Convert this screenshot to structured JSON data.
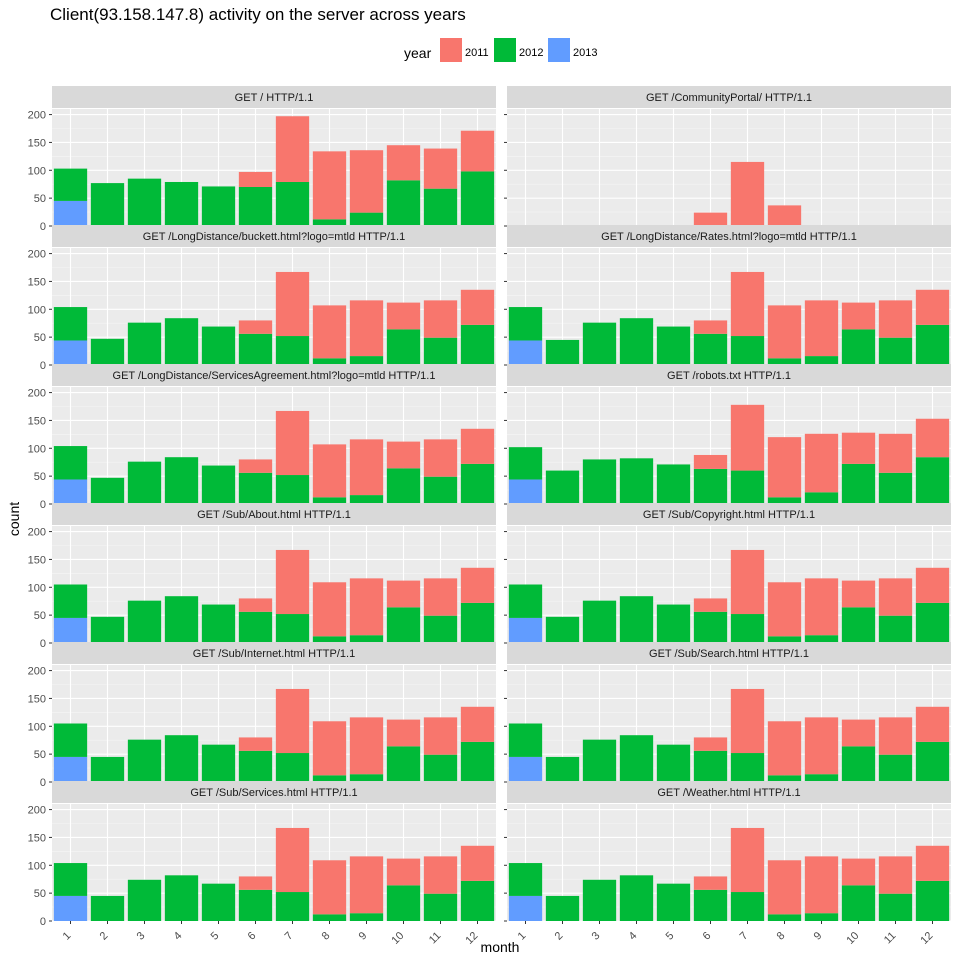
{
  "chart_data": {
    "type": "bar",
    "stacked": true,
    "title": "Client(93.158.147.8) activity on the server across years",
    "xlabel": "month",
    "ylabel": "count",
    "ylim": [
      0,
      210
    ],
    "y_ticks": [
      "0",
      "50",
      "100",
      "150",
      "200"
    ],
    "categories": [
      "1",
      "2",
      "3",
      "4",
      "5",
      "6",
      "7",
      "8",
      "9",
      "10",
      "11",
      "12"
    ],
    "legend": {
      "title": "year",
      "position": "top",
      "entries": [
        {
          "name": "2011",
          "color": "#F8766D"
        },
        {
          "name": "2012",
          "color": "#00BA38"
        },
        {
          "name": "2013",
          "color": "#619CFF"
        }
      ]
    },
    "panels": [
      {
        "name": "GET / HTTP/1.1",
        "series": [
          {
            "name": "2011",
            "values": [
              0,
              0,
              0,
              0,
              0,
              27,
              118,
              122,
              112,
              63,
              72,
              73
            ]
          },
          {
            "name": "2012",
            "values": [
              58,
              77,
              85,
              79,
              71,
              70,
              79,
              12,
              24,
              82,
              67,
              98
            ]
          },
          {
            "name": "2013",
            "values": [
              45,
              0,
              0,
              0,
              0,
              0,
              0,
              0,
              0,
              0,
              0,
              0
            ]
          }
        ]
      },
      {
        "name": "GET /CommunityPortal/ HTTP/1.1",
        "series": [
          {
            "name": "2011",
            "values": [
              0,
              0,
              0,
              0,
              0,
              24,
              115,
              37,
              0,
              0,
              0,
              0
            ]
          },
          {
            "name": "2012",
            "values": [
              0,
              0,
              0,
              0,
              0,
              0,
              0,
              0,
              0,
              0,
              0,
              0
            ]
          },
          {
            "name": "2013",
            "values": [
              0,
              0,
              0,
              0,
              0,
              0,
              0,
              0,
              0,
              0,
              0,
              0
            ]
          }
        ]
      },
      {
        "name": "GET /LongDistance/buckett.html?logo=mtld HTTP/1.1",
        "series": [
          {
            "name": "2011",
            "values": [
              0,
              0,
              0,
              0,
              0,
              24,
              115,
              95,
              100,
              48,
              67,
              63
            ]
          },
          {
            "name": "2012",
            "values": [
              60,
              47,
              76,
              84,
              69,
              56,
              52,
              12,
              16,
              64,
              49,
              72
            ]
          },
          {
            "name": "2013",
            "values": [
              44,
              0,
              0,
              0,
              0,
              0,
              0,
              0,
              0,
              0,
              0,
              0
            ]
          }
        ]
      },
      {
        "name": "GET /LongDistance/Rates.html?logo=mtld HTTP/1.1",
        "series": [
          {
            "name": "2011",
            "values": [
              0,
              0,
              0,
              0,
              0,
              24,
              115,
              95,
              100,
              48,
              67,
              63
            ]
          },
          {
            "name": "2012",
            "values": [
              60,
              45,
              76,
              84,
              69,
              56,
              52,
              12,
              16,
              64,
              49,
              72
            ]
          },
          {
            "name": "2013",
            "values": [
              44,
              0,
              0,
              0,
              0,
              0,
              0,
              0,
              0,
              0,
              0,
              0
            ]
          }
        ]
      },
      {
        "name": "GET /LongDistance/ServicesAgreement.html?logo=mtld HTTP/1.1",
        "series": [
          {
            "name": "2011",
            "values": [
              0,
              0,
              0,
              0,
              0,
              24,
              115,
              95,
              100,
              48,
              67,
              63
            ]
          },
          {
            "name": "2012",
            "values": [
              60,
              47,
              76,
              84,
              69,
              56,
              52,
              12,
              16,
              64,
              49,
              72
            ]
          },
          {
            "name": "2013",
            "values": [
              44,
              0,
              0,
              0,
              0,
              0,
              0,
              0,
              0,
              0,
              0,
              0
            ]
          }
        ]
      },
      {
        "name": "GET /robots.txt HTTP/1.1",
        "series": [
          {
            "name": "2011",
            "values": [
              0,
              0,
              0,
              0,
              0,
              25,
              118,
              108,
              105,
              56,
              70,
              69
            ]
          },
          {
            "name": "2012",
            "values": [
              58,
              60,
              80,
              82,
              71,
              63,
              60,
              12,
              21,
              72,
              56,
              84
            ]
          },
          {
            "name": "2013",
            "values": [
              44,
              0,
              0,
              0,
              0,
              0,
              0,
              0,
              0,
              0,
              0,
              0
            ]
          }
        ]
      },
      {
        "name": "GET /Sub/About.html HTTP/1.1",
        "series": [
          {
            "name": "2011",
            "values": [
              0,
              0,
              0,
              0,
              0,
              24,
              115,
              97,
              102,
              48,
              67,
              63
            ]
          },
          {
            "name": "2012",
            "values": [
              60,
              47,
              76,
              84,
              69,
              56,
              52,
              12,
              14,
              64,
              49,
              72
            ]
          },
          {
            "name": "2013",
            "values": [
              45,
              0,
              0,
              0,
              0,
              0,
              0,
              0,
              0,
              0,
              0,
              0
            ]
          }
        ]
      },
      {
        "name": "GET /Sub/Copyright.html HTTP/1.1",
        "series": [
          {
            "name": "2011",
            "values": [
              0,
              0,
              0,
              0,
              0,
              24,
              115,
              97,
              102,
              48,
              67,
              63
            ]
          },
          {
            "name": "2012",
            "values": [
              60,
              47,
              76,
              84,
              69,
              56,
              52,
              12,
              14,
              64,
              49,
              72
            ]
          },
          {
            "name": "2013",
            "values": [
              45,
              0,
              0,
              0,
              0,
              0,
              0,
              0,
              0,
              0,
              0,
              0
            ]
          }
        ]
      },
      {
        "name": "GET /Sub/Internet.html HTTP/1.1",
        "series": [
          {
            "name": "2011",
            "values": [
              0,
              0,
              0,
              0,
              0,
              24,
              115,
              97,
              102,
              48,
              67,
              63
            ]
          },
          {
            "name": "2012",
            "values": [
              60,
              45,
              76,
              84,
              67,
              56,
              52,
              12,
              14,
              64,
              49,
              72
            ]
          },
          {
            "name": "2013",
            "values": [
              45,
              0,
              0,
              0,
              0,
              0,
              0,
              0,
              0,
              0,
              0,
              0
            ]
          }
        ]
      },
      {
        "name": "GET /Sub/Search.html HTTP/1.1",
        "series": [
          {
            "name": "2011",
            "values": [
              0,
              0,
              0,
              0,
              0,
              24,
              115,
              97,
              102,
              48,
              67,
              63
            ]
          },
          {
            "name": "2012",
            "values": [
              60,
              45,
              76,
              84,
              67,
              56,
              52,
              12,
              14,
              64,
              49,
              72
            ]
          },
          {
            "name": "2013",
            "values": [
              45,
              0,
              0,
              0,
              0,
              0,
              0,
              0,
              0,
              0,
              0,
              0
            ]
          }
        ]
      },
      {
        "name": "GET /Sub/Services.html HTTP/1.1",
        "series": [
          {
            "name": "2011",
            "values": [
              0,
              0,
              0,
              0,
              0,
              24,
              115,
              97,
              102,
              48,
              67,
              63
            ]
          },
          {
            "name": "2012",
            "values": [
              59,
              45,
              74,
              82,
              67,
              56,
              52,
              12,
              14,
              64,
              49,
              72
            ]
          },
          {
            "name": "2013",
            "values": [
              45,
              0,
              0,
              0,
              0,
              0,
              0,
              0,
              0,
              0,
              0,
              0
            ]
          }
        ]
      },
      {
        "name": "GET /Weather.html HTTP/1.1",
        "series": [
          {
            "name": "2011",
            "values": [
              0,
              0,
              0,
              0,
              0,
              24,
              115,
              97,
              102,
              48,
              67,
              63
            ]
          },
          {
            "name": "2012",
            "values": [
              59,
              45,
              74,
              82,
              67,
              56,
              52,
              12,
              14,
              64,
              49,
              72
            ]
          },
          {
            "name": "2013",
            "values": [
              45,
              0,
              0,
              0,
              0,
              0,
              0,
              0,
              0,
              0,
              0,
              0
            ]
          }
        ]
      }
    ]
  }
}
